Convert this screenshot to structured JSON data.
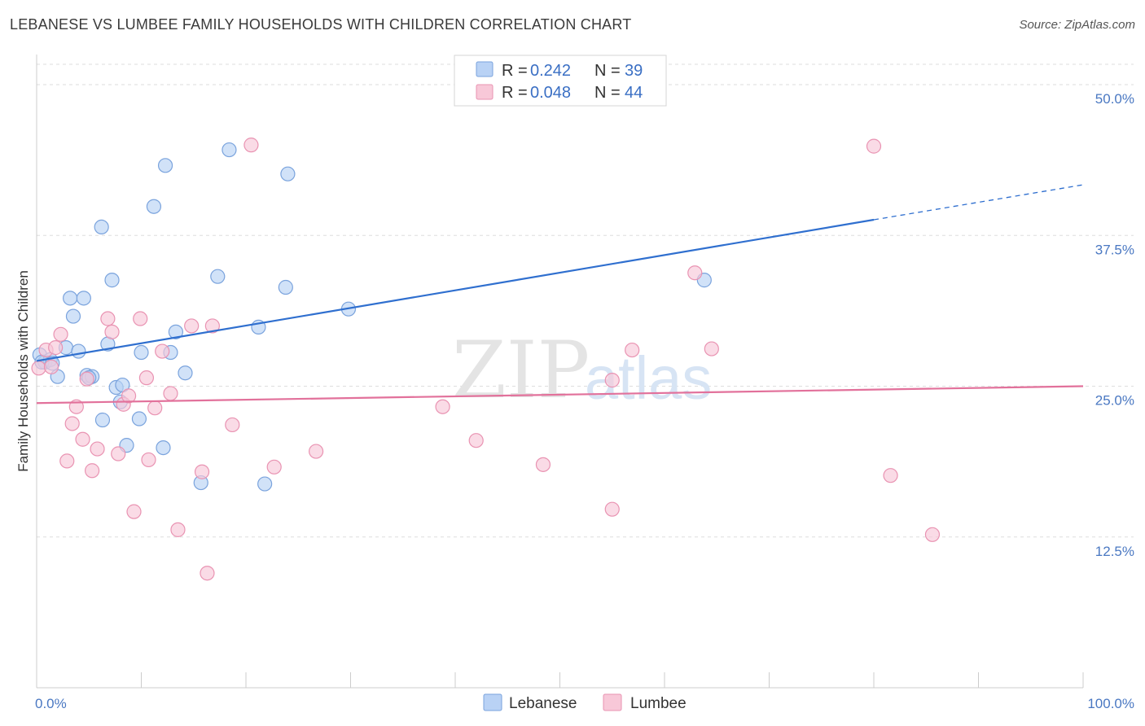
{
  "title": "LEBANESE VS LUMBEE FAMILY HOUSEHOLDS WITH CHILDREN CORRELATION CHART",
  "source": "Source: ZipAtlas.com",
  "watermark": {
    "zip": "ZIP",
    "atlas": "atlas"
  },
  "colors": {
    "lebanese_fill": "#b9d2f5",
    "lebanese_stroke": "#7aa3dd",
    "lebanese_line": "#2f6fcf",
    "lumbee_fill": "#f8c8d8",
    "lumbee_stroke": "#e993b2",
    "lumbee_line": "#e2719b",
    "tick_text": "#4a78c2",
    "grid": "#dddddd"
  },
  "legend": {
    "rows": [
      {
        "r_label": "R =",
        "r_value": "0.242",
        "n_label": "N =",
        "n_value": "39"
      },
      {
        "r_label": "R =",
        "r_value": "0.048",
        "n_label": "N =",
        "n_value": "44"
      }
    ]
  },
  "chart_data": {
    "type": "scatter",
    "title": "LEBANESE VS LUMBEE FAMILY HOUSEHOLDS WITH CHILDREN CORRELATION CHART",
    "xlabel": "",
    "ylabel": "Family Households with Children",
    "xlim": [
      0,
      100
    ],
    "ylim": [
      0,
      52.5
    ],
    "x_tick_labels": [
      "0.0%",
      "100.0%"
    ],
    "y_ticks": [
      12.5,
      25.0,
      37.5,
      50.0
    ],
    "y_tick_labels": [
      "12.5%",
      "25.0%",
      "37.5%",
      "50.0%"
    ],
    "grid": "horizontal dashed",
    "legend_position": "top-center",
    "series": [
      {
        "name": "Lebanese",
        "points": [
          [
            0.3,
            27.6
          ],
          [
            0.8,
            27.0
          ],
          [
            1.3,
            27.2
          ],
          [
            2.0,
            25.8
          ],
          [
            2.8,
            28.2
          ],
          [
            3.2,
            32.3
          ],
          [
            3.5,
            30.8
          ],
          [
            4.0,
            27.9
          ],
          [
            4.5,
            32.3
          ],
          [
            4.8,
            25.9
          ],
          [
            5.3,
            25.8
          ],
          [
            6.3,
            22.2
          ],
          [
            6.2,
            38.2
          ],
          [
            6.8,
            28.5
          ],
          [
            7.2,
            33.8
          ],
          [
            7.6,
            24.9
          ],
          [
            8.2,
            25.1
          ],
          [
            8.6,
            20.1
          ],
          [
            9.8,
            22.3
          ],
          [
            10.0,
            27.8
          ],
          [
            8.0,
            23.7
          ],
          [
            11.2,
            39.9
          ],
          [
            12.1,
            19.9
          ],
          [
            12.3,
            43.3
          ],
          [
            12.8,
            27.8
          ],
          [
            13.3,
            29.5
          ],
          [
            14.2,
            26.1
          ],
          [
            15.7,
            17.0
          ],
          [
            17.3,
            34.1
          ],
          [
            18.4,
            44.6
          ],
          [
            21.2,
            29.9
          ],
          [
            21.8,
            16.9
          ],
          [
            23.8,
            33.2
          ],
          [
            24.0,
            42.6
          ],
          [
            29.8,
            31.4
          ],
          [
            63.8,
            33.8
          ],
          [
            0.5,
            27.0
          ],
          [
            1.5,
            26.9
          ],
          [
            5.0,
            25.7
          ]
        ],
        "trend": {
          "x0": 0,
          "y0": 27.1,
          "x1": 80,
          "y1": 38.8,
          "dash_to_x": 100,
          "dash_to_y": 41.7
        }
      },
      {
        "name": "Lumbee",
        "points": [
          [
            0.2,
            26.5
          ],
          [
            0.9,
            28.0
          ],
          [
            1.4,
            26.6
          ],
          [
            1.8,
            28.2
          ],
          [
            2.3,
            29.3
          ],
          [
            2.9,
            18.8
          ],
          [
            3.4,
            21.9
          ],
          [
            3.8,
            23.3
          ],
          [
            4.4,
            20.6
          ],
          [
            4.8,
            25.6
          ],
          [
            5.3,
            18.0
          ],
          [
            5.8,
            19.8
          ],
          [
            6.8,
            30.6
          ],
          [
            7.2,
            29.5
          ],
          [
            7.8,
            19.4
          ],
          [
            8.3,
            23.5
          ],
          [
            8.8,
            24.2
          ],
          [
            9.3,
            14.6
          ],
          [
            9.9,
            30.6
          ],
          [
            10.5,
            25.7
          ],
          [
            10.7,
            18.9
          ],
          [
            11.3,
            23.2
          ],
          [
            12.0,
            27.9
          ],
          [
            12.8,
            24.4
          ],
          [
            13.5,
            13.1
          ],
          [
            14.8,
            30.0
          ],
          [
            15.8,
            17.9
          ],
          [
            16.3,
            9.5
          ],
          [
            16.8,
            30.0
          ],
          [
            18.7,
            21.8
          ],
          [
            20.5,
            45.0
          ],
          [
            22.7,
            18.3
          ],
          [
            26.7,
            19.6
          ],
          [
            38.8,
            23.3
          ],
          [
            42.0,
            20.5
          ],
          [
            48.4,
            18.5
          ],
          [
            55.0,
            25.5
          ],
          [
            55.0,
            14.8
          ],
          [
            56.9,
            28.0
          ],
          [
            62.9,
            34.4
          ],
          [
            64.5,
            28.1
          ],
          [
            80.0,
            44.9
          ],
          [
            81.6,
            17.6
          ],
          [
            85.6,
            12.7
          ]
        ],
        "trend": {
          "x0": 0,
          "y0": 23.6,
          "x1": 100,
          "y1": 25.0
        }
      }
    ]
  },
  "bottom_legend": [
    "Lebanese",
    "Lumbee"
  ]
}
